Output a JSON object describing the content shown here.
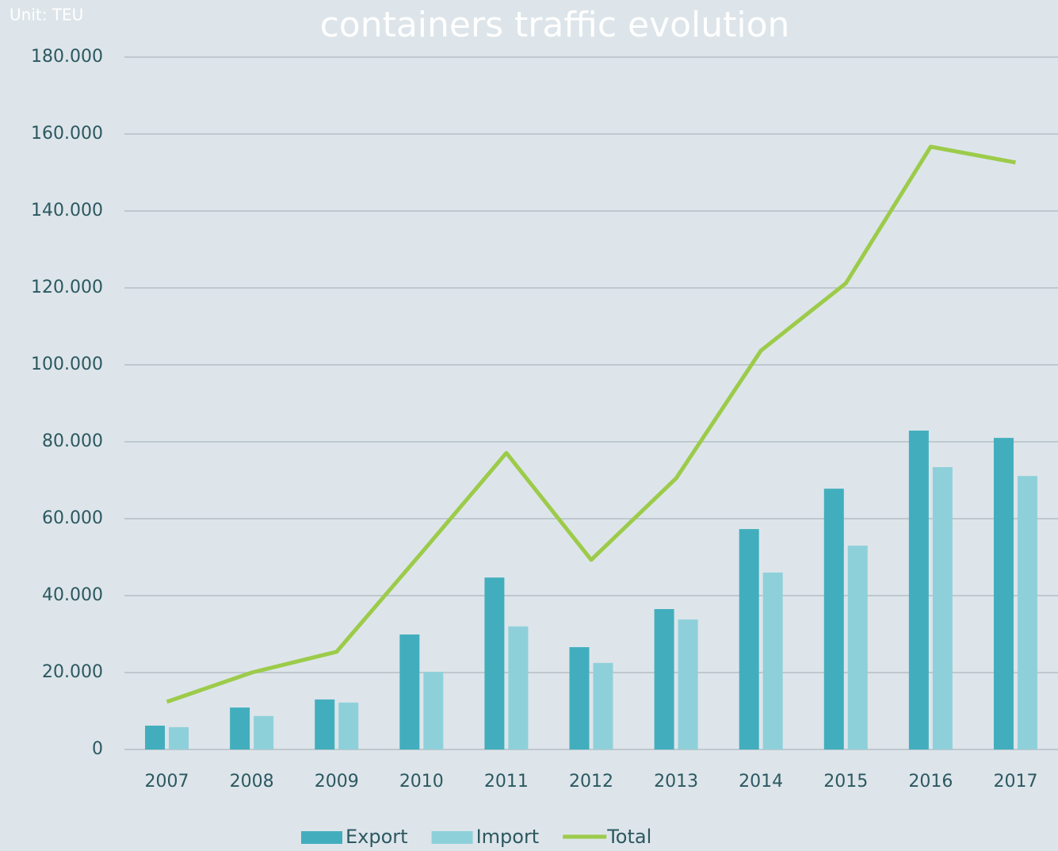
{
  "chart_data": {
    "type": "bar",
    "title": "containers traffic evolution",
    "unit_label": "Unit: TEU",
    "categories": [
      "2007",
      "2008",
      "2009",
      "2010",
      "2011",
      "2012",
      "2013",
      "2014",
      "2015",
      "2016",
      "2017"
    ],
    "series": [
      {
        "name": "Export",
        "color": "#42aebd",
        "type": "bar",
        "values": [
          6200,
          10900,
          13000,
          29900,
          44700,
          26600,
          36500,
          57300,
          67800,
          82900,
          81000
        ]
      },
      {
        "name": "Import",
        "color": "#8ed0da",
        "type": "bar",
        "values": [
          5800,
          8700,
          12200,
          20200,
          32000,
          22500,
          33800,
          46000,
          53000,
          73400,
          71100
        ]
      },
      {
        "name": "Total",
        "color": "#9ccb4a",
        "type": "line",
        "values": [
          12400,
          20000,
          25400,
          51100,
          77100,
          49300,
          70500,
          103700,
          121200,
          156700,
          152600
        ]
      }
    ],
    "ylim": [
      0,
      180000
    ],
    "yticks": [
      0,
      {
        "value": 20000,
        "label": "20.000"
      },
      {
        "value": 40000,
        "label": "40.000"
      },
      {
        "value": 60000,
        "label": "60.000"
      },
      {
        "value": 80000,
        "label": "80.000"
      },
      {
        "value": 100000,
        "label": "100.000"
      },
      {
        "value": 120000,
        "label": "120.000"
      },
      {
        "value": 140000,
        "label": "140.000"
      },
      {
        "value": 160000,
        "label": "160.000"
      },
      {
        "value": 180000,
        "label": "180.000"
      }
    ],
    "grid": true,
    "legend": "bottom"
  }
}
